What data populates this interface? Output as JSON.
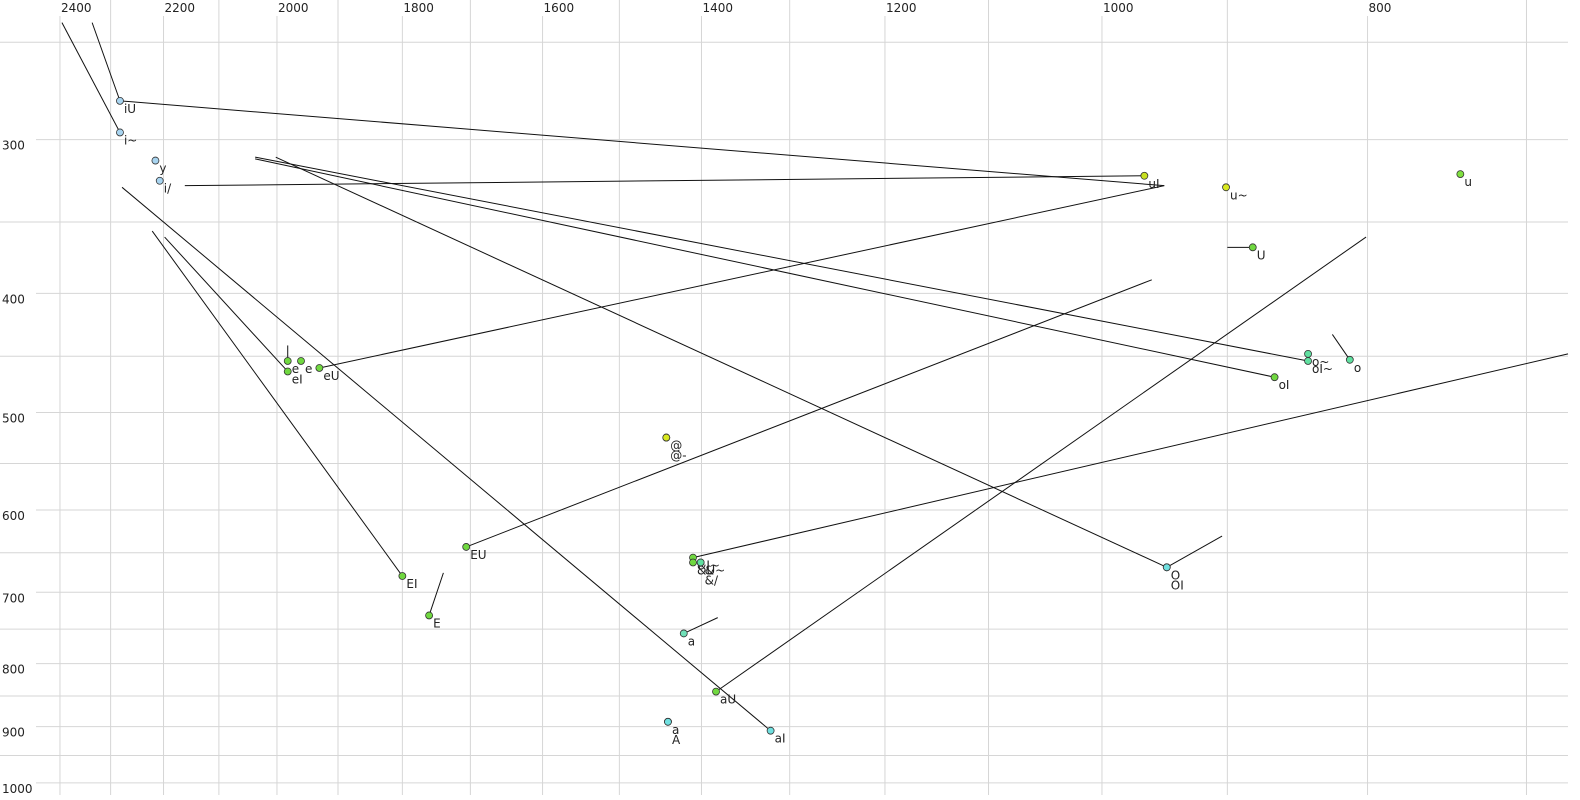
{
  "chart_data": {
    "type": "scatter",
    "xlog": true,
    "ylog": true,
    "grid": true,
    "xlim": [
      2524,
      676
    ],
    "ylim": [
      231,
      1023
    ],
    "xticks": [
      2400,
      2200,
      2000,
      1800,
      1600,
      1400,
      1200,
      1000,
      800
    ],
    "yticks": [
      300,
      400,
      500,
      600,
      700,
      800,
      900,
      1000
    ],
    "x_minor_grid": [
      2300,
      2100,
      1900,
      1700,
      1500,
      1300,
      1100,
      900,
      700
    ],
    "y_minor_grid": [
      250,
      350,
      450,
      550,
      650,
      750,
      850,
      950
    ],
    "points": [
      {
        "label": "iU",
        "x": 2282,
        "y": 279,
        "color": "#a8d4f0"
      },
      {
        "label": "i~",
        "x": 2282,
        "y": 296,
        "color": "#a8d4f0"
      },
      {
        "label": "y",
        "x": 2215,
        "y": 312,
        "color": "#a8d4f0"
      },
      {
        "label": "i/",
        "x": 2207,
        "y": 324,
        "color": "#a8d4f0"
      },
      {
        "label": "uI",
        "x": 965,
        "y": 321,
        "color": "#c8e020"
      },
      {
        "label": "u~",
        "x": 901,
        "y": 328,
        "color": "#d8e820"
      },
      {
        "label": "u",
        "x": 740,
        "y": 320,
        "color": "#80e040"
      },
      {
        "label": "U",
        "x": 881,
        "y": 367,
        "color": "#70d840"
      },
      {
        "label": "o~",
        "x": 841,
        "y": 448,
        "color": "#60e0a0"
      },
      {
        "label": "oI~",
        "x": 841,
        "y": 454,
        "color": "#60e0a0"
      },
      {
        "label": "o",
        "x": 812,
        "y": 453,
        "color": "#60e0a0"
      },
      {
        "label": "oI",
        "x": 865,
        "y": 468,
        "color": "#70d840"
      },
      {
        "label": "e",
        "x": 1982,
        "y": 454,
        "color": "#70d840"
      },
      {
        "label": "e",
        "x": 1960,
        "y": 454,
        "color": "#70d840"
      },
      {
        "label": "eI",
        "x": 1982,
        "y": 463,
        "color": "#70d840"
      },
      {
        "label": "eU",
        "x": 1930,
        "y": 460,
        "color": "#70d840"
      },
      {
        "label": "@",
        "x": 1442,
        "y": 524,
        "color": "#d8e820"
      },
      {
        "label": "@-",
        "x": 1442,
        "y": 524,
        "color": "#d8e820"
      },
      {
        "label": "EU",
        "x": 1706,
        "y": 643,
        "color": "#70d840"
      },
      {
        "label": "EI",
        "x": 1800,
        "y": 679,
        "color": "#70d840"
      },
      {
        "label": "E",
        "x": 1760,
        "y": 731,
        "color": "#70d840"
      },
      {
        "label": "&I~",
        "x": 1410,
        "y": 656,
        "color": "#70d840"
      },
      {
        "label": "&U~",
        "x": 1410,
        "y": 662,
        "color": "#70d840"
      },
      {
        "label": "&",
        "x": 1401,
        "y": 662,
        "color": "#60e0a0"
      },
      {
        "label": "&/",
        "x": 1401,
        "y": 662,
        "color": "#60e0a0"
      },
      {
        "label": "a",
        "x": 1421,
        "y": 756,
        "color": "#70e0b8"
      },
      {
        "label": "aU",
        "x": 1383,
        "y": 843,
        "color": "#70d840"
      },
      {
        "label": "a",
        "x": 1440,
        "y": 892,
        "color": "#70e0e0"
      },
      {
        "label": "A",
        "x": 1440,
        "y": 892,
        "color": "#70e0e0"
      },
      {
        "label": "aI",
        "x": 1321,
        "y": 907,
        "color": "#70e0e0"
      },
      {
        "label": "O",
        "x": 947,
        "y": 668,
        "color": "#70e0e0"
      },
      {
        "label": "OI",
        "x": 947,
        "y": 668,
        "color": "#70e0e0"
      }
    ],
    "tracks": [
      {
        "x": [
          2282,
          949
        ],
        "y": [
          279,
          327
        ]
      },
      {
        "x": [
          2282,
          2336
        ],
        "y": [
          279,
          241
        ]
      },
      {
        "x": [
          2282,
          2396
        ],
        "y": [
          296,
          241
        ]
      },
      {
        "x": [
          2161,
          965
        ],
        "y": [
          327,
          321
        ]
      },
      {
        "x": [
          2037,
          841
        ],
        "y": [
          310,
          454
        ]
      },
      {
        "x": [
          2037,
          865
        ],
        "y": [
          311,
          468
        ]
      },
      {
        "x": [
          2002,
          947
        ],
        "y": [
          310,
          668
        ]
      },
      {
        "x": [
          1930,
          949
        ],
        "y": [
          460,
          327
        ]
      },
      {
        "x": [
          1982,
          1982
        ],
        "y": [
          441,
          454
        ]
      },
      {
        "x": [
          2278,
          1321
        ],
        "y": [
          328,
          907
        ]
      },
      {
        "x": [
          2221,
          1800
        ],
        "y": [
          356,
          679
        ]
      },
      {
        "x": [
          2198,
          1982
        ],
        "y": [
          360,
          463
        ]
      },
      {
        "x": [
          1706,
          959
        ],
        "y": [
          643,
          390
        ]
      },
      {
        "x": [
          1760,
          1739
        ],
        "y": [
          731,
          675
        ]
      },
      {
        "x": [
          1410,
          676
        ],
        "y": [
          656,
          448
        ]
      },
      {
        "x": [
          1421,
          1381
        ],
        "y": [
          756,
          734
        ]
      },
      {
        "x": [
          1383,
          801
        ],
        "y": [
          843,
          360
        ]
      },
      {
        "x": [
          947,
          904
        ],
        "y": [
          668,
          630
        ]
      },
      {
        "x": [
          900,
          881
        ],
        "y": [
          367,
          367
        ]
      },
      {
        "x": [
          812,
          824
        ],
        "y": [
          453,
          432
        ]
      }
    ]
  }
}
